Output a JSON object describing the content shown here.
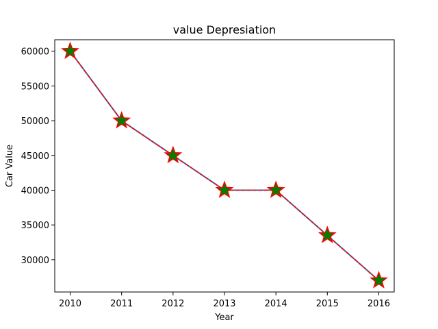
{
  "chart_data": {
    "type": "line",
    "title": "value Depresiation",
    "xlabel": "Year",
    "ylabel": "Car Value",
    "x": [
      2010,
      2011,
      2012,
      2013,
      2014,
      2015,
      2016
    ],
    "series": [
      {
        "values": [
          60000,
          50000,
          45000,
          40000,
          40000,
          33500,
          27000
        ],
        "line_color": "#ff0000",
        "line_style": "dashed",
        "underlay_color": "#1f77b4",
        "marker": "star",
        "marker_fill": "#008000",
        "marker_edge": "#ff0000"
      }
    ],
    "xlim": [
      2009.7,
      2016.3
    ],
    "ylim": [
      25350,
      61650
    ],
    "xticks": [
      "2010",
      "2011",
      "2012",
      "2013",
      "2014",
      "2015",
      "2016"
    ],
    "yticks": [
      "30000",
      "35000",
      "40000",
      "45000",
      "50000",
      "55000",
      "60000"
    ],
    "grid": false,
    "legend": false
  }
}
